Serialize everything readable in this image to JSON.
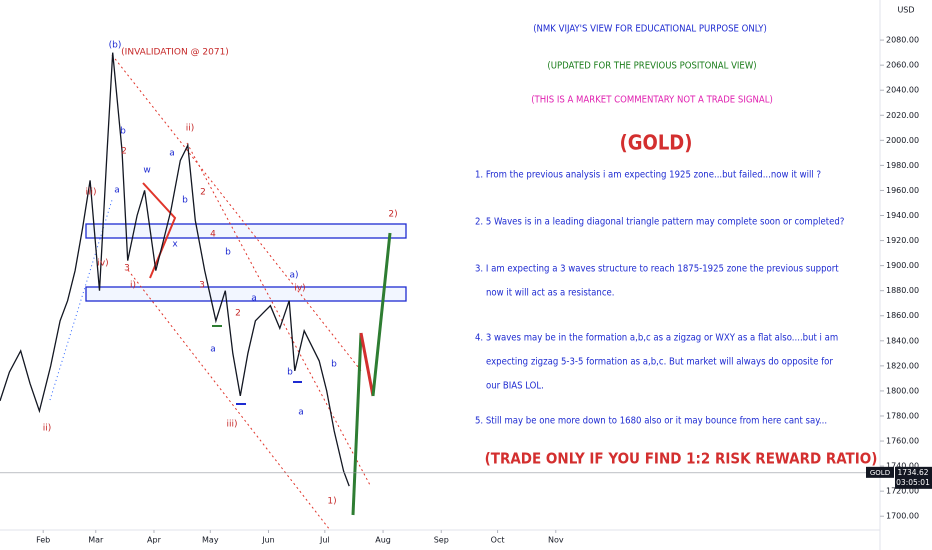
{
  "chart_data": {
    "type": "line",
    "series": [
      {
        "name": "GOLD",
        "color": "#131722",
        "x": [
          9,
          14,
          20,
          25,
          30,
          36,
          41,
          45,
          49,
          53,
          57,
          62,
          66,
          69,
          74,
          77,
          82,
          86,
          92,
          96,
          100,
          105,
          109,
          113,
          118,
          124,
          129,
          133,
          137,
          141,
          145,
          149,
          153,
          158,
          163,
          166,
          171,
          175,
          179,
          183,
          187,
          192,
          195
        ],
        "values": [
          1792,
          1815,
          1832,
          1806,
          1784,
          1820,
          1856,
          1872,
          1896,
          1930,
          1968,
          1880,
          1990,
          2070,
          1992,
          1904,
          1940,
          1960,
          1896,
          1920,
          1944,
          1984,
          1996,
          1936,
          1896,
          1856,
          1880,
          1830,
          1796,
          1830,
          1856,
          1862,
          1868,
          1850,
          1872,
          1816,
          1848,
          1836,
          1824,
          1800,
          1768,
          1736,
          1724
        ]
      }
    ],
    "xlim": [
      9,
      475
    ],
    "xticks": [
      {
        "value": 32,
        "label": "Feb"
      },
      {
        "value": 60,
        "label": "Mar"
      },
      {
        "value": 91,
        "label": "Apr"
      },
      {
        "value": 121,
        "label": "May"
      },
      {
        "value": 152,
        "label": "Jun"
      },
      {
        "value": 182,
        "label": "Jul"
      },
      {
        "value": 213,
        "label": "Aug"
      },
      {
        "value": 244,
        "label": "Sep"
      },
      {
        "value": 274,
        "label": "Oct"
      },
      {
        "value": 305,
        "label": "Nov"
      }
    ],
    "ylim": [
      1689,
      2112
    ],
    "yticks": [
      {
        "value": 1700,
        "label": "1700.00"
      },
      {
        "value": 1720,
        "label": "1720.00"
      },
      {
        "value": 1740,
        "label": "1740.00"
      },
      {
        "value": 1760,
        "label": "1760.00"
      },
      {
        "value": 1780,
        "label": "1780.00"
      },
      {
        "value": 1800,
        "label": "1800.00"
      },
      {
        "value": 1820,
        "label": "1820.00"
      },
      {
        "value": 1840,
        "label": "1840.00"
      },
      {
        "value": 1860,
        "label": "1860.00"
      },
      {
        "value": 1880,
        "label": "1880.00"
      },
      {
        "value": 1900,
        "label": "1900.00"
      },
      {
        "value": 1920,
        "label": "1920.00"
      },
      {
        "value": 1940,
        "label": "1940.00"
      },
      {
        "value": 1960,
        "label": "1960.00"
      },
      {
        "value": 1980,
        "label": "1980.00"
      },
      {
        "value": 2000,
        "label": "2000.00"
      },
      {
        "value": 2020,
        "label": "2020.00"
      },
      {
        "value": 2040,
        "label": "2040.00"
      },
      {
        "value": 2060,
        "label": "2060.00"
      },
      {
        "value": 2080,
        "label": "2080.00"
      }
    ],
    "y_unit": "USD",
    "grid": false,
    "current_price": {
      "symbol": "GOLD",
      "value": 1734.62,
      "countdown": "03:05:01"
    },
    "annotations": [
      "(b)",
      "(INVALIDATION @ 2071)",
      "b",
      "2",
      "iii)",
      "a",
      "w",
      "a",
      "ii)",
      "2",
      "b",
      "x",
      "4",
      "b",
      "iv)",
      "3",
      "i)",
      "3",
      "a",
      "a)",
      "iv)",
      "2",
      "a",
      "b",
      "b",
      "a",
      "iii)",
      "ii)",
      "1)",
      "2)"
    ],
    "commentary": {
      "header": [
        "(NMK VIJAY'S VIEW FOR EDUCATIONAL PURPOSE ONLY)",
        "(UPDATED FOR THE PREVIOUS POSITONAL VIEW)",
        "(THIS IS A MARKET COMMENTARY NOT A TRADE SIGNAL)",
        "(GOLD)"
      ],
      "points": [
        "1. From the previous analysis i am expecting 1925 zone...but failed...now it will ?",
        "2. 5 Waves is in a leading diagonal triangle pattern may complete soon or completed?",
        "3. I am expecting a 3 waves structure to reach 1875-1925 zone the previous support",
        "now it will act as a resistance.",
        "4. 3 waves may be in the formation a,b,c as a zigzag or WXY as a flat also....but i am",
        "expecting zigzag 5-3-5 formation as a,b,c. But market will always do opposite for",
        "our BIAS LOL.",
        "5. Still may be one more down to 1680 also or it may bounce from here cant say..."
      ],
      "footer": "(TRADE ONLY IF YOU FIND 1:2 RISK REWARD RATIO)"
    }
  }
}
